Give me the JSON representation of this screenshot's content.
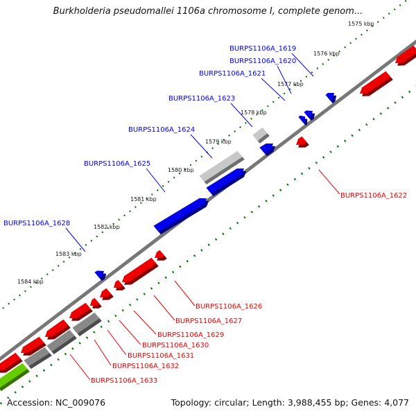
{
  "title": "Burkholderia pseudomallei 1106a chromosome I, complete genom...",
  "footer": {
    "accession": "Accession: NC_009076",
    "summary": "Topology: circular; Length: 3,988,455 bp; Genes: 4,077"
  },
  "colors": {
    "forward": "#0000ee",
    "reverse": "#ee0000",
    "gray": "#888888",
    "light_gray": "#c8c8c8",
    "green": "#66cc00",
    "tick": "#007700",
    "backbone": "#777777"
  },
  "ticks": [
    "1575 kbp",
    "1576 kbp",
    "1577 kbp",
    "1578 kbp",
    "1579 kbp",
    "1580 kbp",
    "1581 kbp",
    "1582 kbp",
    "1583 kbp",
    "1584 kbp"
  ],
  "labels": {
    "forward": [
      "BURPS1106A_1619",
      "BURPS1106A_1620",
      "BURPS1106A_1621",
      "BURPS1106A_1623",
      "BURPS1106A_1624",
      "BURPS1106A_1625",
      "BURPS1106A_1628"
    ],
    "reverse": [
      "BURPS1106A_1622",
      "BURPS1106A_1626",
      "BURPS1106A_1627",
      "BURPS1106A_1629",
      "BURPS1106A_1630",
      "BURPS1106A_1631",
      "BURPS1106A_1632",
      "BURPS1106A_1633"
    ]
  }
}
